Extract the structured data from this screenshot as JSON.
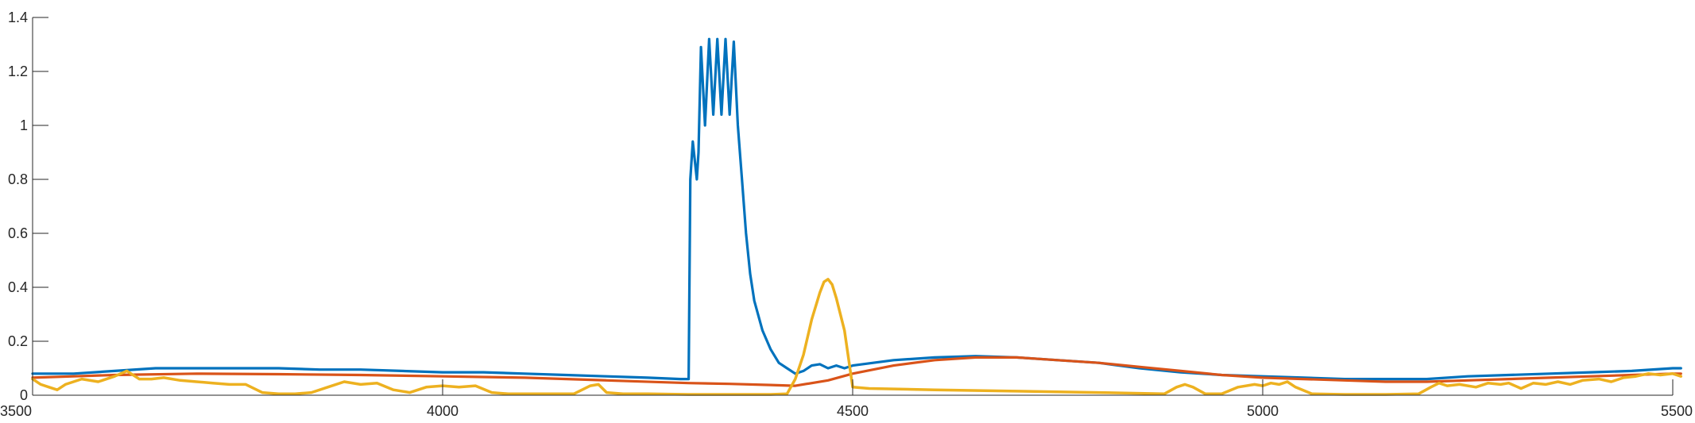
{
  "chart_data": {
    "type": "line",
    "title": "",
    "xlabel": "",
    "ylabel": "",
    "xlim": [
      3500,
      5500
    ],
    "ylim": [
      0,
      1.4
    ],
    "xticks": [
      3500,
      4000,
      4500,
      5000,
      5500
    ],
    "yticks": [
      0,
      0.2,
      0.4,
      0.6,
      0.8,
      1,
      1.2,
      1.4
    ],
    "xtick_labels": [
      "3500",
      "4000",
      "4500",
      "5000",
      "5500"
    ],
    "ytick_labels": [
      "0",
      "0.2",
      "0.4",
      "0.6",
      "0.8",
      "1",
      "1.2",
      "1.4"
    ],
    "grid": false,
    "legend": "none",
    "series": [
      {
        "color": "#0072BD",
        "x": [
          3500,
          3550,
          3600,
          3650,
          3700,
          3750,
          3800,
          3850,
          3900,
          3950,
          4000,
          4050,
          4100,
          4150,
          4200,
          4250,
          4290,
          4300,
          4302,
          4305,
          4310,
          4312,
          4315,
          4320,
          4325,
          4330,
          4335,
          4340,
          4345,
          4350,
          4355,
          4360,
          4365,
          4370,
          4375,
          4380,
          4390,
          4400,
          4410,
          4420,
          4430,
          4440,
          4450,
          4460,
          4470,
          4480,
          4490,
          4500,
          4550,
          4600,
          4650,
          4700,
          4750,
          4800,
          4850,
          4900,
          4950,
          5000,
          5050,
          5100,
          5150,
          5200,
          5250,
          5300,
          5350,
          5400,
          5450,
          5500,
          5510
        ],
        "values": [
          0.08,
          0.08,
          0.09,
          0.1,
          0.1,
          0.1,
          0.1,
          0.095,
          0.095,
          0.09,
          0.085,
          0.085,
          0.08,
          0.075,
          0.07,
          0.065,
          0.06,
          0.06,
          0.8,
          0.94,
          0.8,
          0.9,
          1.29,
          1.0,
          1.32,
          1.04,
          1.32,
          1.04,
          1.32,
          1.04,
          1.31,
          1.0,
          0.8,
          0.6,
          0.45,
          0.35,
          0.24,
          0.17,
          0.12,
          0.1,
          0.08,
          0.09,
          0.11,
          0.115,
          0.1,
          0.11,
          0.1,
          0.11,
          0.13,
          0.14,
          0.145,
          0.14,
          0.13,
          0.12,
          0.1,
          0.085,
          0.075,
          0.07,
          0.065,
          0.06,
          0.06,
          0.06,
          0.07,
          0.075,
          0.08,
          0.085,
          0.09,
          0.1,
          0.1
        ]
      },
      {
        "color": "#D95319",
        "x": [
          3500,
          3550,
          3600,
          3700,
          3800,
          3900,
          4000,
          4100,
          4200,
          4300,
          4350,
          4400,
          4430,
          4470,
          4500,
          4550,
          4600,
          4650,
          4700,
          4750,
          4800,
          4850,
          4900,
          4950,
          5000,
          5050,
          5100,
          5150,
          5200,
          5250,
          5300,
          5350,
          5400,
          5450,
          5500,
          5510
        ],
        "values": [
          0.065,
          0.07,
          0.075,
          0.08,
          0.078,
          0.075,
          0.07,
          0.065,
          0.055,
          0.045,
          0.042,
          0.038,
          0.035,
          0.055,
          0.08,
          0.11,
          0.13,
          0.14,
          0.14,
          0.13,
          0.12,
          0.105,
          0.09,
          0.075,
          0.065,
          0.06,
          0.055,
          0.05,
          0.05,
          0.055,
          0.06,
          0.065,
          0.07,
          0.075,
          0.08,
          0.08
        ]
      },
      {
        "color": "#EDB120",
        "x": [
          3500,
          3510,
          3520,
          3530,
          3540,
          3560,
          3580,
          3600,
          3615,
          3630,
          3645,
          3660,
          3680,
          3700,
          3720,
          3740,
          3760,
          3780,
          3800,
          3820,
          3840,
          3860,
          3880,
          3900,
          3920,
          3940,
          3960,
          3980,
          4000,
          4020,
          4040,
          4060,
          4080,
          4100,
          4120,
          4140,
          4160,
          4180,
          4190,
          4200,
          4220,
          4250,
          4300,
          4350,
          4400,
          4420,
          4430,
          4440,
          4450,
          4460,
          4465,
          4470,
          4475,
          4480,
          4490,
          4500,
          4520,
          4600,
          4700,
          4800,
          4880,
          4895,
          4905,
          4915,
          4930,
          4950,
          4970,
          4990,
          5000,
          5010,
          5020,
          5030,
          5040,
          5060,
          5100,
          5150,
          5190,
          5205,
          5215,
          5225,
          5240,
          5260,
          5275,
          5290,
          5300,
          5315,
          5330,
          5345,
          5360,
          5375,
          5390,
          5410,
          5425,
          5440,
          5455,
          5470,
          5485,
          5500,
          5510
        ],
        "values": [
          0.06,
          0.04,
          0.03,
          0.02,
          0.04,
          0.06,
          0.05,
          0.07,
          0.09,
          0.06,
          0.06,
          0.065,
          0.055,
          0.05,
          0.045,
          0.04,
          0.04,
          0.01,
          0.005,
          0.005,
          0.01,
          0.03,
          0.05,
          0.04,
          0.045,
          0.02,
          0.01,
          0.03,
          0.035,
          0.03,
          0.035,
          0.01,
          0.005,
          0.005,
          0.005,
          0.005,
          0.005,
          0.035,
          0.04,
          0.01,
          0.005,
          0.005,
          0.003,
          0.003,
          0.003,
          0.005,
          0.06,
          0.15,
          0.28,
          0.38,
          0.42,
          0.43,
          0.41,
          0.36,
          0.24,
          0.03,
          0.025,
          0.02,
          0.015,
          0.01,
          0.005,
          0.03,
          0.04,
          0.03,
          0.005,
          0.005,
          0.03,
          0.04,
          0.035,
          0.045,
          0.04,
          0.05,
          0.03,
          0.005,
          0.003,
          0.003,
          0.005,
          0.03,
          0.045,
          0.035,
          0.04,
          0.03,
          0.045,
          0.04,
          0.045,
          0.025,
          0.045,
          0.04,
          0.05,
          0.04,
          0.055,
          0.06,
          0.05,
          0.065,
          0.07,
          0.08,
          0.075,
          0.08,
          0.07
        ]
      }
    ]
  }
}
